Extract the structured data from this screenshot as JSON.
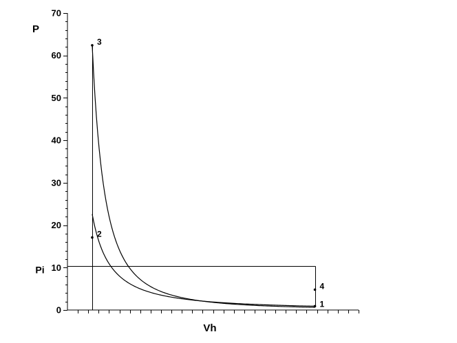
{
  "chart_data": {
    "type": "line",
    "title": "",
    "xlabel": "Vh",
    "ylabel": "P",
    "ylim": [
      0,
      70
    ],
    "xlim": [
      0,
      10
    ],
    "yticks": [
      0,
      10,
      20,
      30,
      40,
      50,
      60,
      70
    ],
    "ytick_labels": [
      "0",
      "10",
      "20",
      "30",
      "40",
      "50",
      "60",
      "70"
    ],
    "y_minor_step": 2,
    "x_tick_count": 28,
    "x_ticks_labeled": false,
    "grid": false,
    "mean_pressure_label": "Pi",
    "mean_pressure_value": 10.3,
    "points": [
      {
        "label": "1",
        "x": 8.5,
        "y": 0.9
      },
      {
        "label": "2",
        "x": 0.85,
        "y": 17.1
      },
      {
        "label": "3",
        "x": 0.85,
        "y": 62.4
      },
      {
        "label": "4",
        "x": 8.5,
        "y": 4.8
      }
    ],
    "series": [
      {
        "kind": "compression",
        "from": "1",
        "to": "2",
        "n": 1.4
      },
      {
        "kind": "expansion",
        "from": "3",
        "to": "4",
        "n": 2.0
      },
      {
        "kind": "isochoric",
        "from": "2",
        "to": "3"
      },
      {
        "kind": "isochoric",
        "from": "4",
        "to": "1"
      }
    ],
    "colors": {
      "line": "#000000",
      "background": "#ffffff"
    }
  }
}
